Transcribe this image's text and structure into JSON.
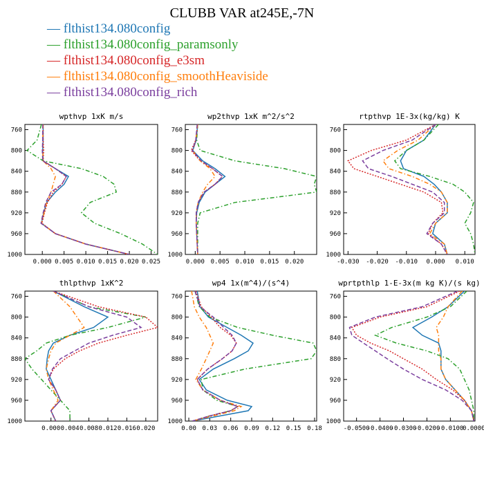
{
  "title": "CLUBB VAR at245E,-7N",
  "legend_dash": "—",
  "series": [
    {
      "name": "flthist134.080config",
      "color": "#1f77b4",
      "dash": "none"
    },
    {
      "name": "flthist134.080config_paramsonly",
      "color": "#2ca02c",
      "dash": "6,3,1.5,3"
    },
    {
      "name": "flthist134.080config_e3sm",
      "color": "#d62728",
      "dash": "2,2"
    },
    {
      "name": "flthist134.080config_smoothHeaviside",
      "color": "#ff7f0e",
      "dash": "6,3,1.5,3"
    },
    {
      "name": "flthist134.080config_rich",
      "color": "#7b3f9e",
      "dash": "6,3"
    }
  ],
  "chart_data": [
    {
      "type": "line",
      "title": "wpthvp  1xK m/s",
      "xlim": [
        -0.004,
        0.0265
      ],
      "xticks": [
        "0.000",
        "0.005",
        "0.010",
        "0.015",
        "0.020",
        "0.025"
      ],
      "xtick_vals": [
        0,
        0.005,
        0.01,
        0.015,
        0.02,
        0.025
      ],
      "ylim": [
        1000,
        750
      ],
      "yticks": [
        "760",
        "800",
        "840",
        "880",
        "920",
        "960",
        "1000"
      ],
      "ytick_vals": [
        760,
        800,
        840,
        880,
        920,
        960,
        1000
      ],
      "y": [
        750,
        780,
        800,
        820,
        835,
        850,
        865,
        880,
        900,
        920,
        940,
        960,
        980,
        1000
      ],
      "series": [
        [
          0.0002,
          0.0002,
          0.0001,
          0.0002,
          0.003,
          0.006,
          0.005,
          0.003,
          0.001,
          0.0003,
          -0.0002,
          0.003,
          0.01,
          0.02
        ],
        [
          -0.0002,
          -0.0012,
          -0.0035,
          0.0002,
          0.009,
          0.014,
          0.0165,
          0.017,
          0.011,
          0.009,
          0.012,
          0.018,
          0.023,
          0.0265
        ],
        [
          0.0002,
          0.0002,
          0.0003,
          0.0002,
          0.003,
          0.0055,
          0.0045,
          0.0025,
          0.0012,
          0.0005,
          -0.0001,
          0.003,
          0.01,
          0.02
        ],
        [
          0.0002,
          0.0001,
          0.0001,
          0.0002,
          0.002,
          0.003,
          0.0025,
          0.002,
          0.001,
          0.0004,
          -0.0002,
          0.003,
          0.01,
          0.02
        ],
        [
          0.0001,
          0.0001,
          0.0,
          0.0001,
          0.003,
          0.0055,
          0.0045,
          0.002,
          0.0008,
          0.0002,
          -0.0003,
          0.003,
          0.01,
          0.02
        ]
      ]
    },
    {
      "type": "line",
      "title": "wp2thvp  1xK m^2/s^2",
      "xlim": [
        -0.002,
        0.0245
      ],
      "xticks": [
        "0.000",
        "0.005",
        "0.010",
        "0.015",
        "0.020"
      ],
      "xtick_vals": [
        0,
        0.005,
        0.01,
        0.015,
        0.02
      ],
      "ylim": [
        1000,
        750
      ],
      "yticks": [
        "760",
        "800",
        "840",
        "880",
        "920",
        "960",
        "1000"
      ],
      "ytick_vals": [
        760,
        800,
        840,
        880,
        920,
        960,
        1000
      ],
      "y": [
        750,
        780,
        800,
        820,
        835,
        850,
        865,
        880,
        900,
        920,
        940,
        960,
        980,
        1000
      ],
      "series": [
        [
          0.0005,
          0.0002,
          -0.0005,
          0.0015,
          0.004,
          0.006,
          0.004,
          0.002,
          0.0008,
          0.0003,
          0.0002,
          0.0003,
          0.0004,
          0.0005
        ],
        [
          0.0005,
          0.0003,
          0.001,
          0.008,
          0.018,
          0.0245,
          0.024,
          0.0245,
          0.008,
          0.001,
          0.0005,
          0.0005,
          0.0005,
          0.0005
        ],
        [
          0.0005,
          0.0001,
          -0.0008,
          0.001,
          0.0035,
          0.0055,
          0.004,
          0.0018,
          0.0006,
          0.0002,
          0.0002,
          0.0003,
          0.0004,
          0.0005
        ],
        [
          0.0005,
          0.0001,
          -0.0005,
          0.001,
          0.003,
          0.004,
          0.0025,
          0.0015,
          0.0006,
          0.0002,
          0.0002,
          0.0003,
          0.0004,
          0.0005
        ],
        [
          0.0004,
          0.0001,
          -0.0006,
          0.0012,
          0.0035,
          0.0055,
          0.004,
          0.0018,
          0.0006,
          0.0002,
          0.0002,
          0.0003,
          0.0004,
          0.0005
        ]
      ]
    },
    {
      "type": "line",
      "title": "rtpthvp  1E-3x(kg/kg) K",
      "xlim": [
        -0.0315,
        0.0135
      ],
      "xticks": [
        "-0.030",
        "-0.020",
        "-0.010",
        "0.000",
        "0.010"
      ],
      "xtick_vals": [
        -0.03,
        -0.02,
        -0.01,
        0,
        0.01
      ],
      "ylim": [
        1000,
        750
      ],
      "yticks": [
        "760",
        "800",
        "840",
        "880",
        "920",
        "960",
        "1000"
      ],
      "ytick_vals": [
        760,
        800,
        840,
        880,
        920,
        960,
        1000
      ],
      "y": [
        750,
        780,
        800,
        820,
        835,
        850,
        865,
        880,
        900,
        920,
        940,
        960,
        980,
        1000
      ],
      "series": [
        [
          0.0,
          -0.004,
          -0.01,
          -0.012,
          -0.011,
          -0.004,
          -0.0005,
          0.002,
          0.004,
          0.004,
          0.0,
          -0.001,
          0.003,
          0.004
        ],
        [
          0.001,
          -0.004,
          -0.01,
          -0.014,
          -0.012,
          -0.002,
          0.006,
          0.01,
          0.013,
          0.012,
          0.01,
          0.012,
          0.013,
          0.0135
        ],
        [
          0.0,
          -0.01,
          -0.022,
          -0.03,
          -0.028,
          -0.02,
          -0.012,
          -0.004,
          0.002,
          0.0025,
          -0.001,
          -0.0025,
          0.002,
          0.004
        ],
        [
          0.0,
          -0.006,
          -0.013,
          -0.018,
          -0.016,
          -0.008,
          -0.002,
          0.002,
          0.004,
          0.004,
          0.0,
          -0.002,
          0.003,
          0.004
        ],
        [
          0.0,
          -0.008,
          -0.018,
          -0.025,
          -0.023,
          -0.015,
          -0.008,
          -0.001,
          0.003,
          0.003,
          -0.001,
          -0.003,
          0.002,
          0.004
        ]
      ]
    },
    {
      "type": "line",
      "title": "thlpthvp  1xK^2",
      "xlim": [
        -0.0055,
        0.0225
      ],
      "xticks": [
        "0.000",
        "0.004",
        "0.008",
        "0.012",
        "0.016",
        "0.020"
      ],
      "xtick_vals": [
        0,
        0.004,
        0.008,
        0.012,
        0.016,
        0.02
      ],
      "ylim": [
        1000,
        750
      ],
      "yticks": [
        "760",
        "800",
        "840",
        "880",
        "920",
        "960",
        "1000"
      ],
      "ytick_vals": [
        760,
        800,
        840,
        880,
        920,
        960,
        1000
      ],
      "y": [
        750,
        780,
        800,
        820,
        835,
        850,
        865,
        880,
        900,
        920,
        940,
        960,
        980,
        1000
      ],
      "series": [
        [
          0.0005,
          0.007,
          0.012,
          0.009,
          0.004,
          0.0005,
          -0.0005,
          -0.0008,
          -0.001,
          0.0,
          0.001,
          0.002,
          0.0,
          0.001
        ],
        [
          0.0005,
          0.008,
          0.02,
          0.012,
          0.004,
          -0.001,
          -0.003,
          -0.0055,
          -0.004,
          -0.002,
          0.0,
          0.002,
          0.004,
          0.004
        ],
        [
          0.0005,
          0.01,
          0.02,
          0.0225,
          0.016,
          0.01,
          0.006,
          0.003,
          0.0005,
          -0.0005,
          0.001,
          0.002,
          0.0,
          0.001
        ],
        [
          0.0005,
          0.004,
          0.0055,
          0.007,
          0.004,
          0.001,
          0.0,
          -0.0005,
          -0.001,
          -0.0005,
          0.0005,
          0.0015,
          0.0,
          0.001
        ],
        [
          0.0005,
          0.008,
          0.016,
          0.019,
          0.013,
          0.008,
          0.005,
          0.002,
          0.0003,
          -0.0005,
          0.001,
          0.002,
          0.0,
          0.001
        ]
      ]
    },
    {
      "type": "line",
      "title": "wp4  1x(m^4)/(s^4)",
      "xlim": [
        -0.005,
        0.183
      ],
      "xticks": [
        "0.00",
        "0.03",
        "0.06",
        "0.09",
        "0.12",
        "0.15",
        "0.18"
      ],
      "xtick_vals": [
        0,
        0.03,
        0.06,
        0.09,
        0.12,
        0.15,
        0.18
      ],
      "ylim": [
        1000,
        750
      ],
      "yticks": [
        "760",
        "800",
        "840",
        "880",
        "920",
        "960",
        "1000"
      ],
      "ytick_vals": [
        760,
        800,
        840,
        880,
        920,
        960,
        1000
      ],
      "y": [
        750,
        780,
        800,
        820,
        835,
        850,
        865,
        880,
        900,
        920,
        940,
        960,
        972,
        980,
        990,
        1000
      ],
      "series": [
        [
          0.012,
          0.016,
          0.028,
          0.055,
          0.075,
          0.092,
          0.085,
          0.065,
          0.035,
          0.015,
          0.025,
          0.055,
          0.09,
          0.085,
          0.045,
          0.005
        ],
        [
          0.009,
          0.015,
          0.03,
          0.07,
          0.12,
          0.178,
          0.183,
          0.175,
          0.08,
          0.018,
          0.02,
          0.04,
          0.07,
          0.06,
          0.03,
          0.005
        ],
        [
          0.01,
          0.018,
          0.032,
          0.045,
          0.06,
          0.068,
          0.062,
          0.048,
          0.027,
          0.012,
          0.02,
          0.045,
          0.07,
          0.06,
          0.03,
          0.005
        ],
        [
          0.004,
          0.008,
          0.015,
          0.025,
          0.03,
          0.035,
          0.03,
          0.025,
          0.018,
          0.01,
          0.02,
          0.045,
          0.075,
          0.065,
          0.035,
          0.005
        ],
        [
          0.009,
          0.016,
          0.035,
          0.05,
          0.062,
          0.068,
          0.062,
          0.048,
          0.027,
          0.012,
          0.02,
          0.045,
          0.07,
          0.06,
          0.03,
          0.005
        ]
      ]
    },
    {
      "type": "line",
      "title": "wprtpthlp  1-E-3x(m kg K)/(s kg)",
      "xlim": [
        -0.0555,
        0.0005
      ],
      "xticks": [
        "-0.0500",
        "-0.0400",
        "-0.0300",
        "-0.0200",
        "-0.0100",
        "0.0000"
      ],
      "xtick_vals": [
        -0.05,
        -0.04,
        -0.03,
        -0.02,
        -0.01,
        0
      ],
      "ylim": [
        1000,
        750
      ],
      "yticks": [
        "760",
        "800",
        "840",
        "880",
        "920",
        "960",
        "1000"
      ],
      "ytick_vals": [
        760,
        800,
        840,
        880,
        920,
        960,
        1000
      ],
      "y": [
        750,
        780,
        800,
        820,
        835,
        850,
        865,
        880,
        900,
        920,
        940,
        960,
        980,
        1000
      ],
      "series": [
        [
          -0.004,
          -0.011,
          -0.018,
          -0.026,
          -0.022,
          -0.015,
          -0.014,
          -0.014,
          -0.014,
          -0.012,
          -0.008,
          -0.004,
          -0.001,
          0.0
        ],
        [
          -0.003,
          -0.01,
          -0.02,
          -0.035,
          -0.042,
          -0.033,
          -0.02,
          -0.011,
          -0.006,
          -0.004,
          -0.002,
          -0.001,
          0.0,
          0.0
        ],
        [
          -0.006,
          -0.02,
          -0.04,
          -0.052,
          -0.05,
          -0.044,
          -0.036,
          -0.03,
          -0.022,
          -0.016,
          -0.009,
          -0.004,
          -0.001,
          0.0
        ],
        [
          -0.005,
          -0.011,
          -0.013,
          -0.016,
          -0.015,
          -0.015,
          -0.015,
          -0.014,
          -0.014,
          -0.012,
          -0.008,
          -0.004,
          -0.001,
          0.0
        ],
        [
          -0.007,
          -0.022,
          -0.042,
          -0.053,
          -0.052,
          -0.047,
          -0.042,
          -0.037,
          -0.03,
          -0.022,
          -0.012,
          -0.005,
          -0.001,
          0.0
        ]
      ]
    }
  ]
}
